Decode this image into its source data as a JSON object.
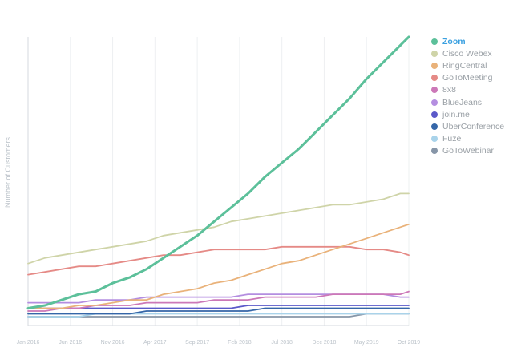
{
  "chart_data": {
    "type": "line",
    "title": "",
    "xlabel": "",
    "ylabel": "Number of Customers",
    "x_ticks": [
      "Jan 2016",
      "Jun 2016",
      "Nov 2016",
      "Apr 2017",
      "Sep 2017",
      "Feb 2018",
      "Jul 2018",
      "Dec 2018",
      "May 2019",
      "Oct 2019"
    ],
    "x": [
      0,
      2,
      4,
      6,
      8,
      10,
      12,
      14,
      16,
      18,
      20,
      22,
      24,
      26,
      28,
      30,
      32,
      34,
      36,
      38,
      40,
      42,
      44,
      45
    ],
    "ylim": [
      0,
      100
    ],
    "grid": "vertical",
    "legend": "right",
    "series": [
      {
        "name": "Zoom",
        "color": "#5cc09a",
        "values": [
          3,
          4,
          6,
          8,
          9,
          12,
          14,
          17,
          21,
          25,
          29,
          34,
          39,
          44,
          50,
          55,
          60,
          66,
          72,
          78,
          85,
          91,
          97,
          100
        ]
      },
      {
        "name": "Cisco Webex",
        "color": "#cfd4a8",
        "values": [
          19,
          21,
          22,
          23,
          24,
          25,
          26,
          27,
          29,
          30,
          31,
          32,
          34,
          35,
          36,
          37,
          38,
          39,
          40,
          40,
          41,
          42,
          44,
          44
        ]
      },
      {
        "name": "RingCentral",
        "color": "#e9b27a",
        "values": [
          3,
          3,
          3,
          4,
          4,
          5,
          6,
          6,
          8,
          9,
          10,
          12,
          13,
          15,
          17,
          19,
          20,
          22,
          24,
          26,
          28,
          30,
          32,
          33
        ]
      },
      {
        "name": "GoToMeeting",
        "color": "#e58a86",
        "values": [
          15,
          16,
          17,
          18,
          18,
          19,
          20,
          21,
          22,
          22,
          23,
          24,
          24,
          24,
          24,
          25,
          25,
          25,
          25,
          25,
          24,
          24,
          23,
          22
        ]
      },
      {
        "name": "8x8",
        "color": "#cc78b8",
        "values": [
          2,
          2,
          3,
          3,
          4,
          4,
          4,
          5,
          5,
          5,
          5,
          6,
          6,
          6,
          7,
          7,
          7,
          7,
          8,
          8,
          8,
          8,
          8,
          9
        ]
      },
      {
        "name": "BlueJeans",
        "color": "#b48ee0",
        "values": [
          5,
          5,
          5,
          5,
          6,
          6,
          6,
          7,
          7,
          7,
          7,
          7,
          7,
          8,
          8,
          8,
          8,
          8,
          8,
          8,
          8,
          8,
          7,
          7
        ]
      },
      {
        "name": "join.me",
        "color": "#5b59c9",
        "values": [
          3,
          3,
          3,
          3,
          3,
          3,
          3,
          3,
          3,
          3,
          3,
          3,
          3,
          4,
          4,
          4,
          4,
          4,
          4,
          4,
          4,
          4,
          4,
          4
        ]
      },
      {
        "name": "UberConference",
        "color": "#3566a8",
        "values": [
          1,
          1,
          1,
          1,
          1,
          1,
          1,
          2,
          2,
          2,
          2,
          2,
          2,
          2,
          3,
          3,
          3,
          3,
          3,
          3,
          3,
          3,
          3,
          3
        ]
      },
      {
        "name": "Fuze",
        "color": "#a9d3ea",
        "values": [
          0,
          0,
          0,
          0,
          1,
          1,
          1,
          1,
          1,
          1,
          1,
          1,
          1,
          1,
          1,
          1,
          1,
          1,
          1,
          1,
          1,
          1,
          1,
          1
        ]
      },
      {
        "name": "GoToWebinar",
        "color": "#8796a8",
        "values": [
          0,
          0,
          0,
          0,
          0,
          0,
          0,
          0,
          0,
          0,
          0,
          0,
          0,
          0,
          0,
          0,
          0,
          0,
          0,
          0,
          1,
          1,
          1,
          1
        ]
      }
    ]
  }
}
